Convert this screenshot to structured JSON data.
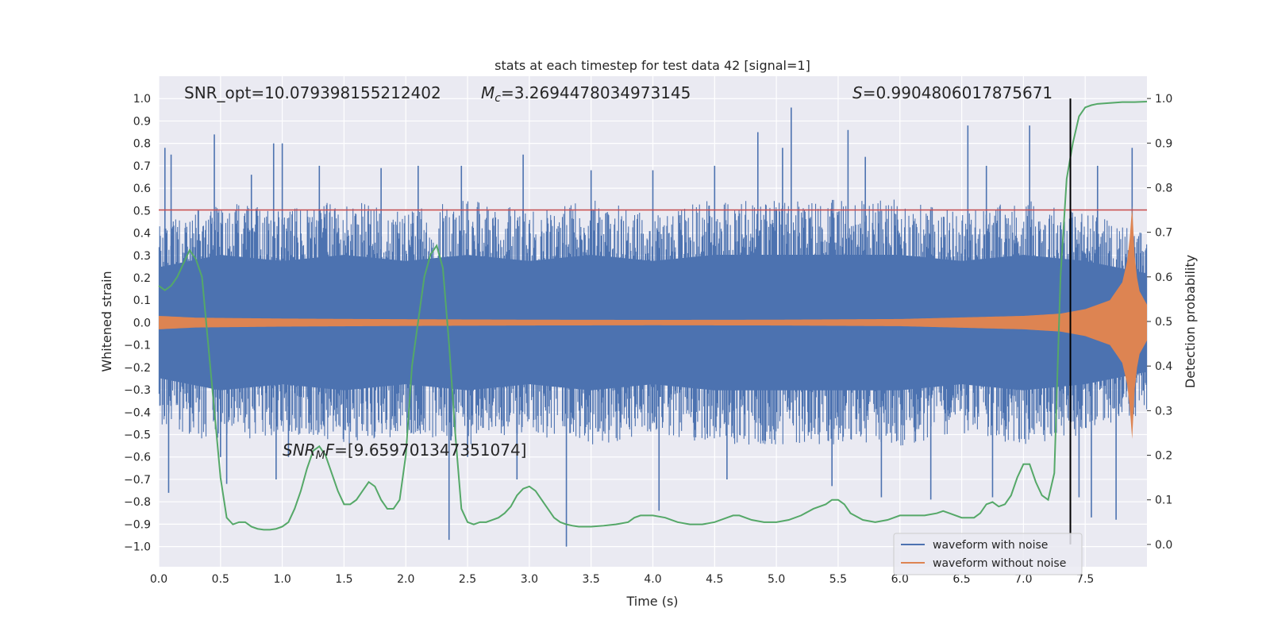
{
  "chart_data": {
    "type": "line",
    "title": "stats at each timestep for test data 42 [signal=1]",
    "xlabel": "Time (s)",
    "ylabel": "Whitened strain",
    "y2label": "Detection probability",
    "xlim": [
      0.0,
      8.0
    ],
    "ylim": [
      -1.09,
      1.1
    ],
    "y2lim": [
      -0.05,
      1.05
    ],
    "x_ticks": [
      "0.0",
      "0.5",
      "1.0",
      "1.5",
      "2.0",
      "2.5",
      "3.0",
      "3.5",
      "4.0",
      "4.5",
      "5.0",
      "5.5",
      "6.0",
      "6.5",
      "7.0",
      "7.5"
    ],
    "y_ticks": [
      "1.0",
      "0.9",
      "0.8",
      "0.7",
      "0.6",
      "0.5",
      "0.4",
      "0.3",
      "0.2",
      "0.1",
      "0.0",
      "−0.1",
      "−0.2",
      "−0.3",
      "−0.4",
      "−0.5",
      "−0.6",
      "−0.7",
      "−0.8",
      "−0.9",
      "−1.0"
    ],
    "y2_ticks": [
      "1.0",
      "0.9",
      "0.8",
      "0.7",
      "0.6",
      "0.5",
      "0.4",
      "0.3",
      "0.2",
      "0.1",
      "0.0"
    ],
    "grid": true,
    "legend_position": "lower-right",
    "annotations": {
      "snr_opt": "SNR_opt=10.079398155212402",
      "mc": "=3.2694478034973145",
      "s_stat": "=0.9904806017875671",
      "snr_mf": "=[9.659701347351074]"
    },
    "threshold": {
      "value": 0.75,
      "color": "#c44e52"
    },
    "vline_x": 7.38,
    "series": [
      {
        "name": "waveform with noise",
        "color": "#4c72b0",
        "axis": "left",
        "envelope_upper": [
          [
            0.0,
            0.45
          ],
          [
            0.5,
            0.55
          ],
          [
            1.0,
            0.5
          ],
          [
            1.5,
            0.55
          ],
          [
            2.0,
            0.5
          ],
          [
            2.5,
            0.55
          ],
          [
            3.0,
            0.5
          ],
          [
            3.5,
            0.55
          ],
          [
            4.0,
            0.5
          ],
          [
            4.5,
            0.55
          ],
          [
            5.0,
            0.55
          ],
          [
            5.5,
            0.55
          ],
          [
            6.0,
            0.55
          ],
          [
            6.5,
            0.5
          ],
          [
            7.0,
            0.55
          ],
          [
            7.5,
            0.5
          ],
          [
            8.0,
            0.4
          ]
        ],
        "envelope_lower": [
          [
            0.0,
            -0.45
          ],
          [
            0.5,
            -0.55
          ],
          [
            1.0,
            -0.5
          ],
          [
            1.5,
            -0.55
          ],
          [
            2.0,
            -0.5
          ],
          [
            2.5,
            -0.55
          ],
          [
            3.0,
            -0.5
          ],
          [
            3.5,
            -0.55
          ],
          [
            4.0,
            -0.5
          ],
          [
            4.5,
            -0.55
          ],
          [
            5.0,
            -0.55
          ],
          [
            5.5,
            -0.55
          ],
          [
            6.0,
            -0.55
          ],
          [
            6.5,
            -0.5
          ],
          [
            7.0,
            -0.55
          ],
          [
            7.5,
            -0.5
          ],
          [
            8.0,
            -0.4
          ]
        ],
        "spikes": [
          [
            0.05,
            0.78
          ],
          [
            0.1,
            0.75
          ],
          [
            0.45,
            0.84
          ],
          [
            0.75,
            0.66
          ],
          [
            0.93,
            0.8
          ],
          [
            1.0,
            0.8
          ],
          [
            1.3,
            0.7
          ],
          [
            1.8,
            0.69
          ],
          [
            2.1,
            0.7
          ],
          [
            2.45,
            0.7
          ],
          [
            2.95,
            0.75
          ],
          [
            3.5,
            0.68
          ],
          [
            4.0,
            0.68
          ],
          [
            4.5,
            0.7
          ],
          [
            4.85,
            0.85
          ],
          [
            5.05,
            0.78
          ],
          [
            5.12,
            0.96
          ],
          [
            5.58,
            0.86
          ],
          [
            5.72,
            0.74
          ],
          [
            6.55,
            0.88
          ],
          [
            6.7,
            0.7
          ],
          [
            7.05,
            0.88
          ],
          [
            7.6,
            0.7
          ],
          [
            7.88,
            0.78
          ],
          [
            0.08,
            -0.76
          ],
          [
            0.5,
            -0.6
          ],
          [
            0.55,
            -0.72
          ],
          [
            0.95,
            -0.7
          ],
          [
            1.05,
            -0.6
          ],
          [
            2.35,
            -0.97
          ],
          [
            2.5,
            -0.6
          ],
          [
            2.9,
            -0.7
          ],
          [
            3.3,
            -1.0
          ],
          [
            4.05,
            -0.84
          ],
          [
            4.6,
            -0.7
          ],
          [
            5.45,
            -0.73
          ],
          [
            5.85,
            -0.78
          ],
          [
            6.25,
            -0.79
          ],
          [
            6.75,
            -0.78
          ],
          [
            7.45,
            -0.78
          ],
          [
            7.55,
            -0.87
          ],
          [
            7.75,
            -0.88
          ]
        ]
      },
      {
        "name": "waveform without noise",
        "color": "#dd8452",
        "axis": "left",
        "envelope": [
          [
            0.0,
            0.03
          ],
          [
            0.3,
            0.022
          ],
          [
            1.0,
            0.018
          ],
          [
            2.0,
            0.015
          ],
          [
            3.0,
            0.013
          ],
          [
            4.0,
            0.012
          ],
          [
            5.0,
            0.013
          ],
          [
            6.0,
            0.016
          ],
          [
            7.0,
            0.03
          ],
          [
            7.3,
            0.04
          ],
          [
            7.5,
            0.06
          ],
          [
            7.7,
            0.1
          ],
          [
            7.8,
            0.18
          ],
          [
            7.85,
            0.3
          ],
          [
            7.88,
            0.52
          ],
          [
            7.9,
            0.3
          ],
          [
            7.93,
            0.15
          ],
          [
            8.0,
            0.08
          ]
        ],
        "lower_min": [
          [
            7.85,
            -0.15
          ],
          [
            7.88,
            -0.4
          ],
          [
            7.91,
            -0.12
          ]
        ]
      },
      {
        "name": "",
        "color": "#55a868",
        "axis": "right",
        "points": [
          [
            0.0,
            0.58
          ],
          [
            0.05,
            0.57
          ],
          [
            0.1,
            0.58
          ],
          [
            0.15,
            0.6
          ],
          [
            0.2,
            0.63
          ],
          [
            0.25,
            0.66
          ],
          [
            0.3,
            0.64
          ],
          [
            0.35,
            0.6
          ],
          [
            0.4,
            0.45
          ],
          [
            0.45,
            0.3
          ],
          [
            0.5,
            0.15
          ],
          [
            0.55,
            0.06
          ],
          [
            0.6,
            0.045
          ],
          [
            0.65,
            0.05
          ],
          [
            0.7,
            0.05
          ],
          [
            0.75,
            0.04
          ],
          [
            0.8,
            0.035
          ],
          [
            0.85,
            0.033
          ],
          [
            0.9,
            0.033
          ],
          [
            0.95,
            0.035
          ],
          [
            1.0,
            0.04
          ],
          [
            1.05,
            0.05
          ],
          [
            1.1,
            0.08
          ],
          [
            1.15,
            0.12
          ],
          [
            1.2,
            0.17
          ],
          [
            1.25,
            0.21
          ],
          [
            1.3,
            0.22
          ],
          [
            1.35,
            0.2
          ],
          [
            1.4,
            0.16
          ],
          [
            1.45,
            0.12
          ],
          [
            1.5,
            0.09
          ],
          [
            1.55,
            0.09
          ],
          [
            1.6,
            0.1
          ],
          [
            1.65,
            0.12
          ],
          [
            1.7,
            0.14
          ],
          [
            1.75,
            0.13
          ],
          [
            1.8,
            0.1
          ],
          [
            1.85,
            0.08
          ],
          [
            1.9,
            0.08
          ],
          [
            1.95,
            0.1
          ],
          [
            2.0,
            0.2
          ],
          [
            2.05,
            0.4
          ],
          [
            2.1,
            0.5
          ],
          [
            2.15,
            0.6
          ],
          [
            2.2,
            0.65
          ],
          [
            2.25,
            0.67
          ],
          [
            2.3,
            0.62
          ],
          [
            2.35,
            0.45
          ],
          [
            2.4,
            0.25
          ],
          [
            2.45,
            0.08
          ],
          [
            2.5,
            0.05
          ],
          [
            2.55,
            0.045
          ],
          [
            2.6,
            0.05
          ],
          [
            2.65,
            0.05
          ],
          [
            2.7,
            0.055
          ],
          [
            2.75,
            0.06
          ],
          [
            2.8,
            0.07
          ],
          [
            2.85,
            0.085
          ],
          [
            2.9,
            0.11
          ],
          [
            2.95,
            0.125
          ],
          [
            3.0,
            0.13
          ],
          [
            3.05,
            0.12
          ],
          [
            3.1,
            0.1
          ],
          [
            3.15,
            0.08
          ],
          [
            3.2,
            0.06
          ],
          [
            3.25,
            0.05
          ],
          [
            3.3,
            0.045
          ],
          [
            3.35,
            0.042
          ],
          [
            3.4,
            0.04
          ],
          [
            3.5,
            0.04
          ],
          [
            3.6,
            0.042
          ],
          [
            3.7,
            0.045
          ],
          [
            3.8,
            0.05
          ],
          [
            3.85,
            0.06
          ],
          [
            3.9,
            0.065
          ],
          [
            4.0,
            0.065
          ],
          [
            4.1,
            0.06
          ],
          [
            4.2,
            0.05
          ],
          [
            4.3,
            0.045
          ],
          [
            4.4,
            0.045
          ],
          [
            4.5,
            0.05
          ],
          [
            4.6,
            0.06
          ],
          [
            4.65,
            0.065
          ],
          [
            4.7,
            0.065
          ],
          [
            4.8,
            0.055
          ],
          [
            4.9,
            0.05
          ],
          [
            5.0,
            0.05
          ],
          [
            5.1,
            0.055
          ],
          [
            5.2,
            0.065
          ],
          [
            5.3,
            0.08
          ],
          [
            5.4,
            0.09
          ],
          [
            5.45,
            0.1
          ],
          [
            5.5,
            0.1
          ],
          [
            5.55,
            0.09
          ],
          [
            5.6,
            0.07
          ],
          [
            5.7,
            0.055
          ],
          [
            5.8,
            0.05
          ],
          [
            5.9,
            0.055
          ],
          [
            6.0,
            0.065
          ],
          [
            6.1,
            0.065
          ],
          [
            6.2,
            0.065
          ],
          [
            6.3,
            0.07
          ],
          [
            6.35,
            0.075
          ],
          [
            6.4,
            0.07
          ],
          [
            6.5,
            0.06
          ],
          [
            6.6,
            0.06
          ],
          [
            6.65,
            0.07
          ],
          [
            6.7,
            0.09
          ],
          [
            6.75,
            0.095
          ],
          [
            6.8,
            0.085
          ],
          [
            6.85,
            0.09
          ],
          [
            6.9,
            0.11
          ],
          [
            6.95,
            0.15
          ],
          [
            7.0,
            0.18
          ],
          [
            7.05,
            0.18
          ],
          [
            7.1,
            0.14
          ],
          [
            7.15,
            0.11
          ],
          [
            7.2,
            0.1
          ],
          [
            7.25,
            0.16
          ],
          [
            7.3,
            0.6
          ],
          [
            7.35,
            0.82
          ],
          [
            7.4,
            0.9
          ],
          [
            7.45,
            0.96
          ],
          [
            7.5,
            0.98
          ],
          [
            7.55,
            0.985
          ],
          [
            7.6,
            0.988
          ],
          [
            7.7,
            0.99
          ],
          [
            7.8,
            0.992
          ],
          [
            7.9,
            0.992
          ],
          [
            8.0,
            0.993
          ]
        ]
      }
    ]
  }
}
